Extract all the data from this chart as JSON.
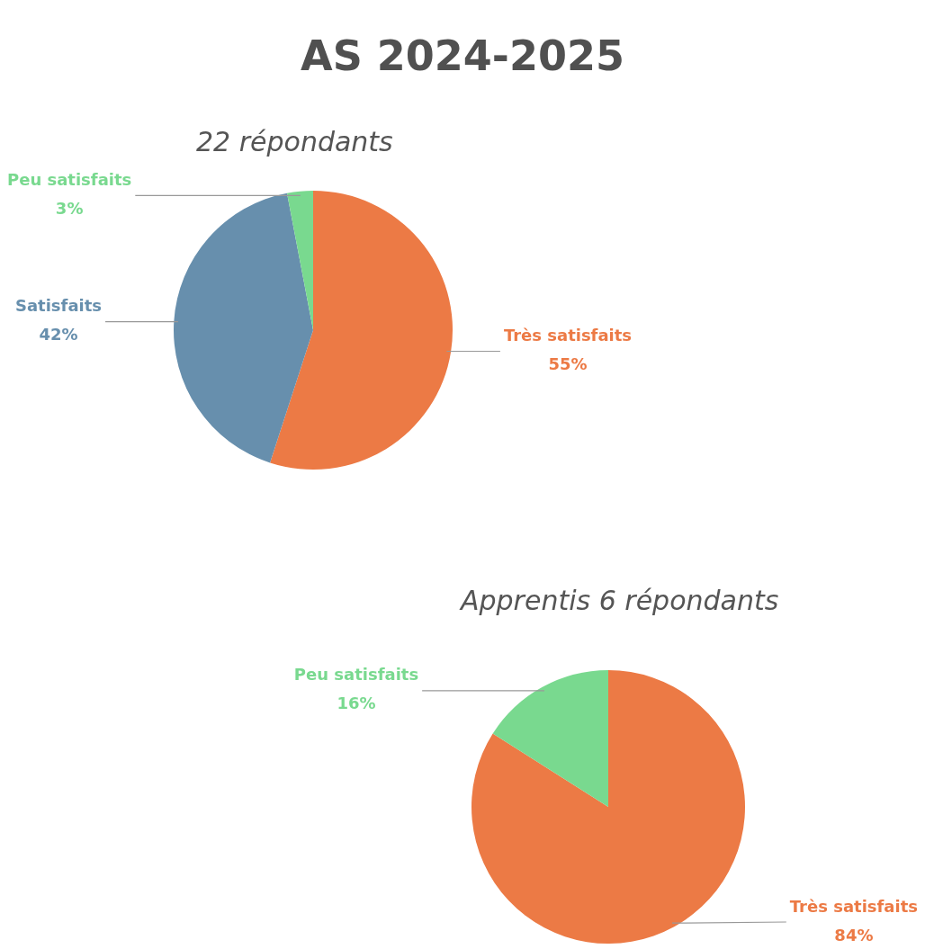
{
  "chart_data": [
    {
      "type": "pie",
      "title": "AS 2024-2025",
      "subtitle": "22 répondants",
      "categories": [
        "Très satisfaits",
        "Satisfaits",
        "Peu satisfaits"
      ],
      "values": [
        55,
        42,
        3
      ],
      "colors": [
        "#ec7a45",
        "#678fad",
        "#79d98f"
      ],
      "value_labels": [
        "55%",
        "42%",
        "3%"
      ],
      "legend": false
    },
    {
      "type": "pie",
      "title": "Apprentis 6 répondants",
      "categories": [
        "Très satisfaits",
        "Peu satisfaits"
      ],
      "values": [
        84,
        16
      ],
      "colors": [
        "#ec7a45",
        "#79d98f"
      ],
      "value_labels": [
        "84%",
        "16%"
      ],
      "legend": false
    }
  ]
}
